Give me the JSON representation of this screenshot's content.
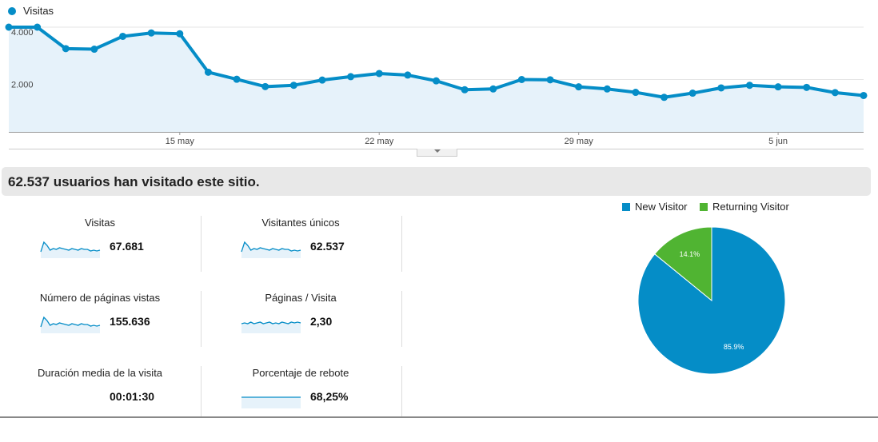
{
  "colors": {
    "accent": "#058dc7",
    "fill": "#e6f2fa",
    "new_visitor": "#058dc7",
    "returning_visitor": "#50b432"
  },
  "main_chart": {
    "legend": "Visitas",
    "y_ticks": [
      "4.000",
      "2.000"
    ],
    "x_ticks": [
      "15 may",
      "22 may",
      "29 may",
      "5 jun"
    ]
  },
  "chart_data": [
    {
      "type": "area",
      "series": [
        {
          "name": "Visitas",
          "values": [
            4000,
            4000,
            3180,
            3160,
            3650,
            3780,
            3750,
            2280,
            2010,
            1730,
            1780,
            1980,
            2110,
            2230,
            2170,
            1950,
            1610,
            1640,
            2000,
            1990,
            1720,
            1640,
            1510,
            1320,
            1480,
            1680,
            1780,
            1720,
            1700,
            1500,
            1390
          ]
        }
      ],
      "y_ticks": [
        "4.000",
        "2.000"
      ],
      "x_ticks": [
        "15 may",
        "22 may",
        "29 may",
        "5 jun"
      ],
      "ylim": [
        0,
        4000
      ]
    },
    {
      "type": "pie",
      "categories": [
        "New Visitor",
        "Returning Visitor"
      ],
      "values": [
        85.9,
        14.1
      ],
      "labels": [
        "85.9%",
        "14.1%"
      ]
    }
  ],
  "summary": {
    "text": "62.537 usuarios han visitado este sitio."
  },
  "metrics": [
    {
      "label": "Visitas",
      "value": "67.681",
      "spark": "wavy"
    },
    {
      "label": "Visitantes únicos",
      "value": "62.537",
      "spark": "wavy"
    },
    {
      "label": "Número de páginas vistas",
      "value": "155.636",
      "spark": "wavy"
    },
    {
      "label": "Páginas / Visita",
      "value": "2,30",
      "spark": "flat-noisy"
    },
    {
      "label": "Duración media de la visita",
      "value": "00:01:30",
      "spark": "none"
    },
    {
      "label": "Porcentaje de rebote",
      "value": "68,25%",
      "spark": "flat"
    }
  ],
  "pie": {
    "legend_new": "New Visitor",
    "legend_returning": "Returning Visitor",
    "label_new": "85.9%",
    "label_returning": "14.1%"
  }
}
